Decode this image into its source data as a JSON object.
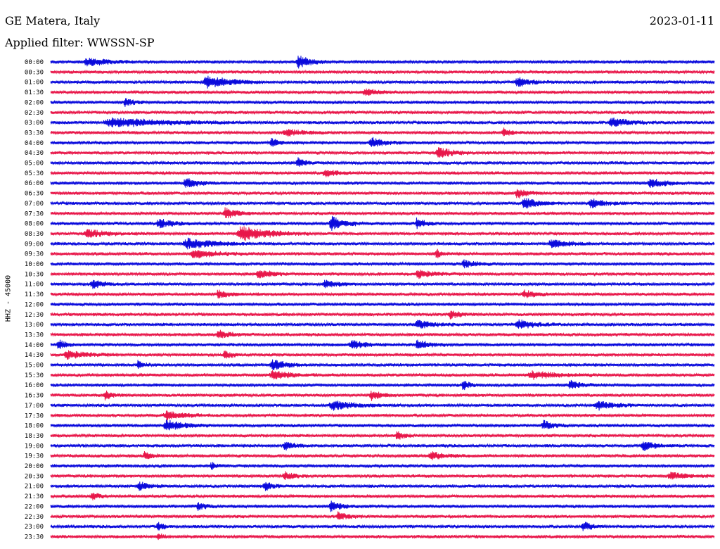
{
  "header": {
    "station": "GE Matera, Italy",
    "date": "2023-01-11",
    "filter": "Applied filter: WWSSN-SP"
  },
  "chart_data": {
    "type": "line",
    "ylabel": "HHZ - 45000",
    "rows": [
      "00:00",
      "00:30",
      "01:00",
      "01:30",
      "02:00",
      "02:30",
      "03:00",
      "03:30",
      "04:00",
      "04:30",
      "05:00",
      "05:30",
      "06:00",
      "06:30",
      "07:00",
      "07:30",
      "08:00",
      "08:30",
      "09:00",
      "09:30",
      "10:00",
      "10:30",
      "11:00",
      "11:30",
      "12:00",
      "12:30",
      "13:00",
      "13:30",
      "14:00",
      "14:30",
      "15:00",
      "15:30",
      "16:00",
      "16:30",
      "17:00",
      "17:30",
      "18:00",
      "18:30",
      "19:00",
      "19:30",
      "20:00",
      "20:30",
      "21:00",
      "21:30",
      "22:00",
      "22:30",
      "23:00",
      "23:30"
    ],
    "trace_colors": [
      "#0a0adc",
      "#e8174a"
    ],
    "row_duration_minutes": 30,
    "events": [
      {
        "row": 0,
        "at": 0.37,
        "len": 0.05,
        "amp": 1.3
      },
      {
        "row": 0,
        "at": 0.05,
        "len": 0.08,
        "amp": 0.8
      },
      {
        "row": 2,
        "at": 0.23,
        "len": 0.09,
        "amp": 1.3
      },
      {
        "row": 2,
        "at": 0.7,
        "len": 0.05,
        "amp": 0.9
      },
      {
        "row": 3,
        "at": 0.47,
        "len": 0.05,
        "amp": 0.7
      },
      {
        "row": 4,
        "at": 0.11,
        "len": 0.03,
        "amp": 0.9
      },
      {
        "row": 6,
        "at": 0.08,
        "len": 0.22,
        "amp": 0.9
      },
      {
        "row": 6,
        "at": 0.84,
        "len": 0.07,
        "amp": 0.9
      },
      {
        "row": 7,
        "at": 0.35,
        "len": 0.07,
        "amp": 0.7
      },
      {
        "row": 7,
        "at": 0.68,
        "len": 0.03,
        "amp": 0.9
      },
      {
        "row": 8,
        "at": 0.48,
        "len": 0.05,
        "amp": 1.0
      },
      {
        "row": 8,
        "at": 0.33,
        "len": 0.03,
        "amp": 0.9
      },
      {
        "row": 9,
        "at": 0.58,
        "len": 0.06,
        "amp": 1.1
      },
      {
        "row": 10,
        "at": 0.37,
        "len": 0.03,
        "amp": 1.0
      },
      {
        "row": 11,
        "at": 0.41,
        "len": 0.05,
        "amp": 0.8
      },
      {
        "row": 12,
        "at": 0.2,
        "len": 0.05,
        "amp": 1.0
      },
      {
        "row": 12,
        "at": 0.9,
        "len": 0.06,
        "amp": 0.9
      },
      {
        "row": 13,
        "at": 0.7,
        "len": 0.04,
        "amp": 1.0
      },
      {
        "row": 14,
        "at": 0.71,
        "len": 0.06,
        "amp": 1.1
      },
      {
        "row": 14,
        "at": 0.81,
        "len": 0.06,
        "amp": 0.9
      },
      {
        "row": 15,
        "at": 0.26,
        "len": 0.05,
        "amp": 1.1
      },
      {
        "row": 16,
        "at": 0.16,
        "len": 0.05,
        "amp": 0.9
      },
      {
        "row": 16,
        "at": 0.42,
        "len": 0.05,
        "amp": 1.6
      },
      {
        "row": 16,
        "at": 0.55,
        "len": 0.03,
        "amp": 1.2
      },
      {
        "row": 17,
        "at": 0.28,
        "len": 0.11,
        "amp": 1.6
      },
      {
        "row": 17,
        "at": 0.05,
        "len": 0.08,
        "amp": 0.8
      },
      {
        "row": 18,
        "at": 0.2,
        "len": 0.1,
        "amp": 1.1
      },
      {
        "row": 18,
        "at": 0.75,
        "len": 0.07,
        "amp": 0.8
      },
      {
        "row": 19,
        "at": 0.21,
        "len": 0.09,
        "amp": 0.8
      },
      {
        "row": 19,
        "at": 0.58,
        "len": 0.02,
        "amp": 1.0
      },
      {
        "row": 20,
        "at": 0.62,
        "len": 0.05,
        "amp": 0.8
      },
      {
        "row": 21,
        "at": 0.31,
        "len": 0.05,
        "amp": 0.9
      },
      {
        "row": 21,
        "at": 0.55,
        "len": 0.06,
        "amp": 0.8
      },
      {
        "row": 22,
        "at": 0.06,
        "len": 0.05,
        "amp": 0.8
      },
      {
        "row": 22,
        "at": 0.41,
        "len": 0.05,
        "amp": 0.7
      },
      {
        "row": 23,
        "at": 0.25,
        "len": 0.04,
        "amp": 0.9
      },
      {
        "row": 23,
        "at": 0.71,
        "len": 0.05,
        "amp": 0.8
      },
      {
        "row": 25,
        "at": 0.6,
        "len": 0.04,
        "amp": 0.8
      },
      {
        "row": 26,
        "at": 0.55,
        "len": 0.06,
        "amp": 0.9
      },
      {
        "row": 26,
        "at": 0.7,
        "len": 0.07,
        "amp": 0.9
      },
      {
        "row": 27,
        "at": 0.25,
        "len": 0.05,
        "amp": 0.8
      },
      {
        "row": 28,
        "at": 0.01,
        "len": 0.03,
        "amp": 1.0
      },
      {
        "row": 28,
        "at": 0.45,
        "len": 0.06,
        "amp": 0.9
      },
      {
        "row": 28,
        "at": 0.55,
        "len": 0.05,
        "amp": 1.0
      },
      {
        "row": 29,
        "at": 0.02,
        "len": 0.08,
        "amp": 0.8
      },
      {
        "row": 29,
        "at": 0.26,
        "len": 0.03,
        "amp": 0.8
      },
      {
        "row": 30,
        "at": 0.33,
        "len": 0.06,
        "amp": 1.0
      },
      {
        "row": 30,
        "at": 0.13,
        "len": 0.02,
        "amp": 1.0
      },
      {
        "row": 31,
        "at": 0.33,
        "len": 0.07,
        "amp": 1.0
      },
      {
        "row": 31,
        "at": 0.72,
        "len": 0.1,
        "amp": 0.8
      },
      {
        "row": 32,
        "at": 0.62,
        "len": 0.02,
        "amp": 1.3
      },
      {
        "row": 32,
        "at": 0.78,
        "len": 0.04,
        "amp": 0.9
      },
      {
        "row": 33,
        "at": 0.48,
        "len": 0.04,
        "amp": 1.0
      },
      {
        "row": 33,
        "at": 0.08,
        "len": 0.03,
        "amp": 0.9
      },
      {
        "row": 34,
        "at": 0.42,
        "len": 0.09,
        "amp": 0.9
      },
      {
        "row": 34,
        "at": 0.82,
        "len": 0.06,
        "amp": 0.9
      },
      {
        "row": 35,
        "at": 0.17,
        "len": 0.07,
        "amp": 0.9
      },
      {
        "row": 36,
        "at": 0.17,
        "len": 0.07,
        "amp": 1.1
      },
      {
        "row": 36,
        "at": 0.74,
        "len": 0.04,
        "amp": 0.9
      },
      {
        "row": 37,
        "at": 0.52,
        "len": 0.03,
        "amp": 0.9
      },
      {
        "row": 38,
        "at": 0.35,
        "len": 0.04,
        "amp": 0.8
      },
      {
        "row": 38,
        "at": 0.89,
        "len": 0.05,
        "amp": 0.9
      },
      {
        "row": 39,
        "at": 0.57,
        "len": 0.06,
        "amp": 0.8
      },
      {
        "row": 39,
        "at": 0.14,
        "len": 0.03,
        "amp": 0.8
      },
      {
        "row": 40,
        "at": 0.24,
        "len": 0.02,
        "amp": 0.8
      },
      {
        "row": 41,
        "at": 0.35,
        "len": 0.04,
        "amp": 0.8
      },
      {
        "row": 41,
        "at": 0.93,
        "len": 0.06,
        "amp": 0.8
      },
      {
        "row": 42,
        "at": 0.13,
        "len": 0.04,
        "amp": 0.9
      },
      {
        "row": 42,
        "at": 0.32,
        "len": 0.03,
        "amp": 0.9
      },
      {
        "row": 43,
        "at": 0.06,
        "len": 0.03,
        "amp": 0.8
      },
      {
        "row": 44,
        "at": 0.42,
        "len": 0.04,
        "amp": 1.1
      },
      {
        "row": 44,
        "at": 0.22,
        "len": 0.03,
        "amp": 0.8
      },
      {
        "row": 45,
        "at": 0.43,
        "len": 0.04,
        "amp": 0.8
      },
      {
        "row": 46,
        "at": 0.16,
        "len": 0.02,
        "amp": 1.2
      },
      {
        "row": 46,
        "at": 0.8,
        "len": 0.04,
        "amp": 0.9
      },
      {
        "row": 47,
        "at": 0.16,
        "len": 0.02,
        "amp": 1.0
      }
    ]
  }
}
